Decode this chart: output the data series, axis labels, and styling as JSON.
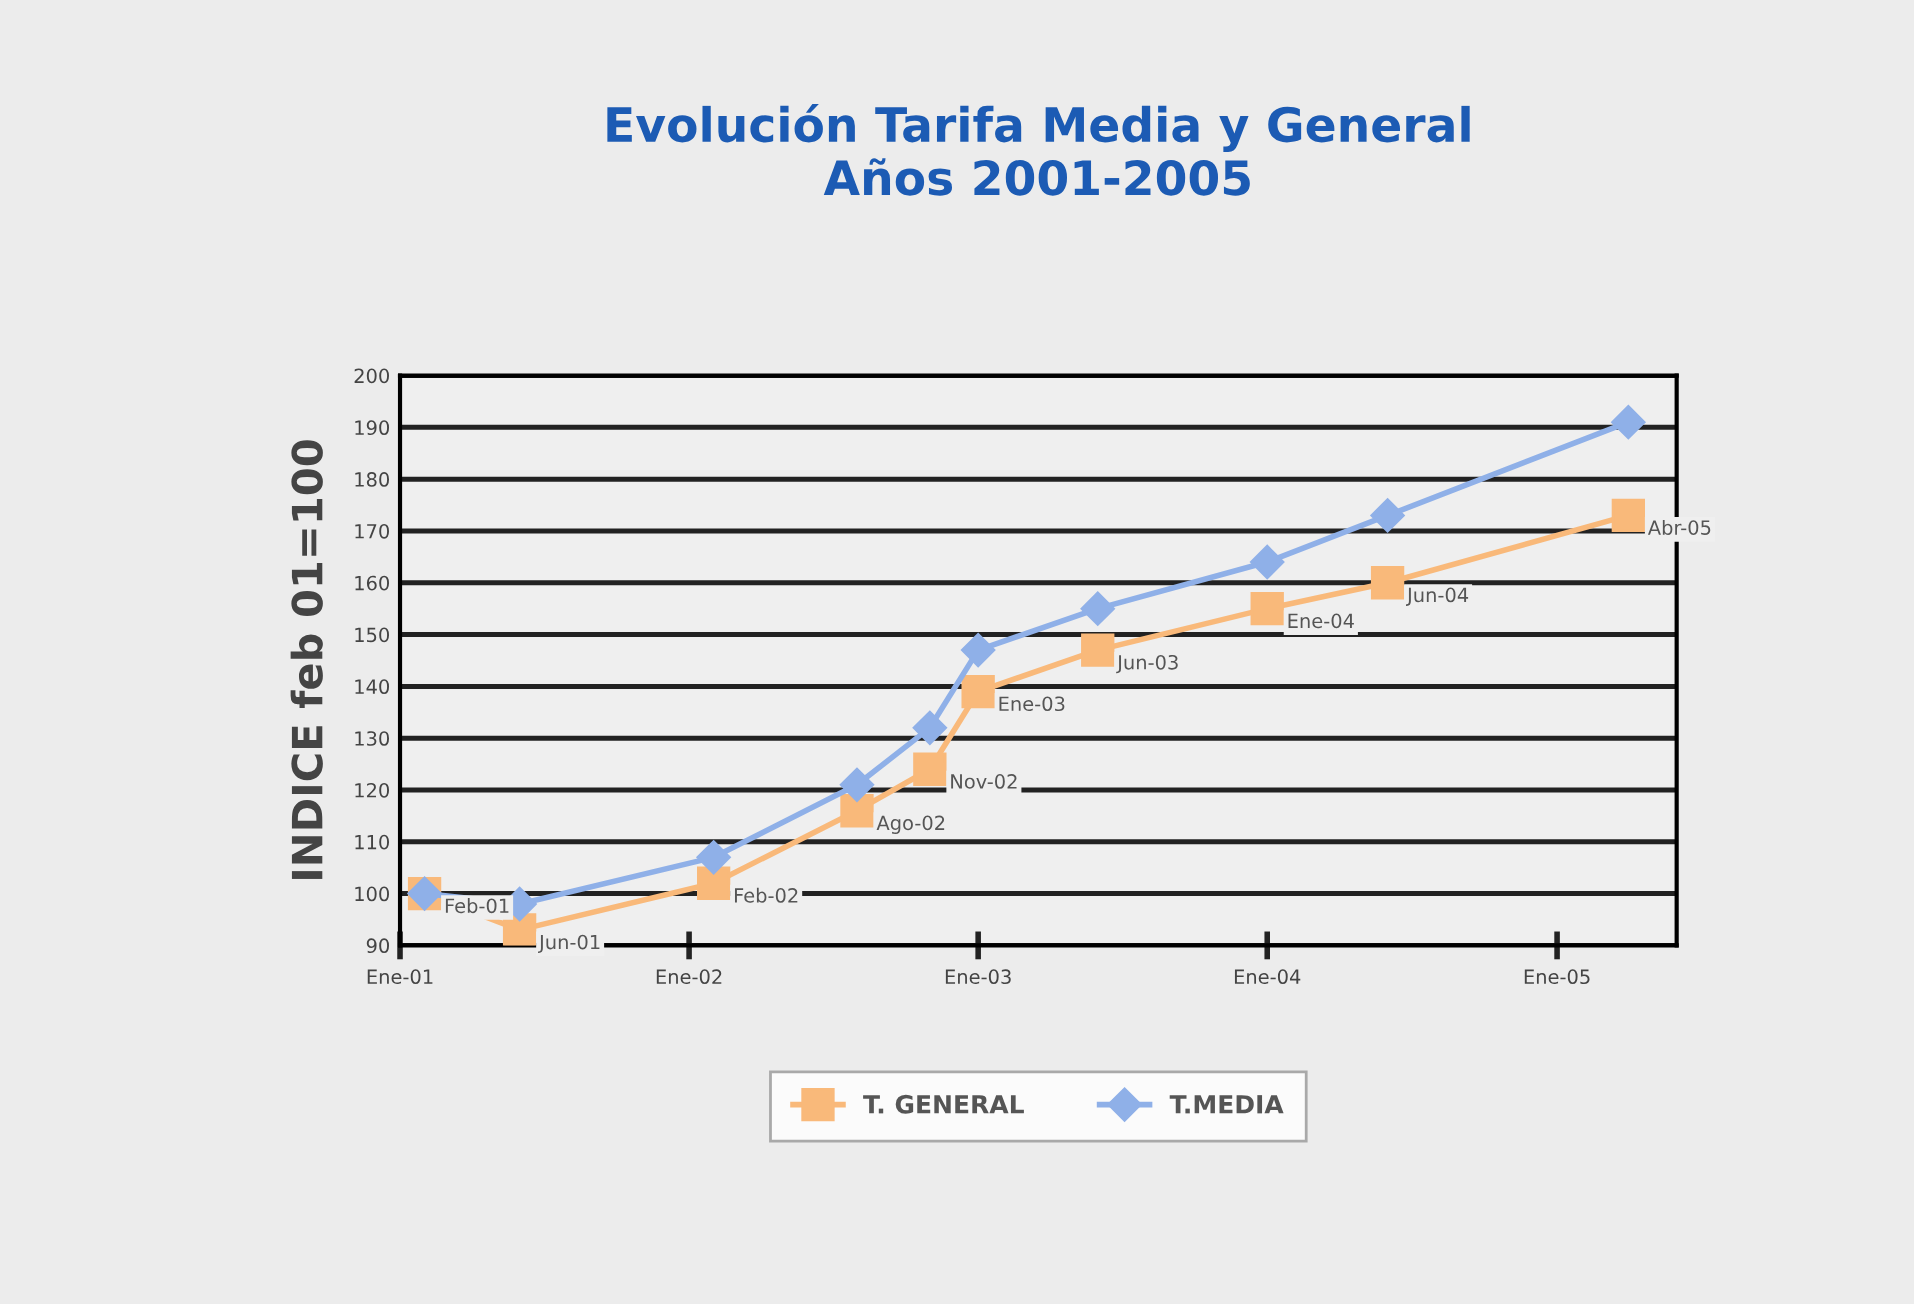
{
  "chart_data": {
    "type": "line",
    "title": "Evolución Tarifa Media y General\nAños 2001-2005",
    "ylabel": "INDICE feb 01=100",
    "x": [
      "2001-02",
      "2001-06",
      "2002-02",
      "2002-08",
      "2002-11",
      "2003-01",
      "2003-06",
      "2004-01",
      "2004-06",
      "2005-04"
    ],
    "series": [
      {
        "name": "T. GENERAL",
        "color": "#f9b97a",
        "marker": "square",
        "values": [
          100,
          93,
          102,
          116,
          124,
          139,
          147,
          155,
          160,
          173
        ]
      },
      {
        "name": "T.MEDIA",
        "color": "#8fb0e8",
        "marker": "diamond",
        "values": [
          100,
          98,
          107,
          121,
          132,
          147,
          155,
          164,
          173,
          191
        ]
      }
    ],
    "annotations": [
      {
        "text": "Feb-01",
        "x": "2001-02",
        "y": 100
      },
      {
        "text": "Jun-01",
        "x": "2001-06",
        "y": 93
      },
      {
        "text": "Feb-02",
        "x": "2002-02",
        "y": 102
      },
      {
        "text": "Ago-02",
        "x": "2002-08",
        "y": 116
      },
      {
        "text": "Nov-02",
        "x": "2002-11",
        "y": 124
      },
      {
        "text": "Ene-03",
        "x": "2003-01",
        "y": 139
      },
      {
        "text": "Jun-03",
        "x": "2003-06",
        "y": 147
      },
      {
        "text": "Ene-04",
        "x": "2004-01",
        "y": 155
      },
      {
        "text": "Jun-04",
        "x": "2004-06",
        "y": 160
      },
      {
        "text": "Abr-05",
        "x": "2005-04",
        "y": 173
      }
    ],
    "xlim": [
      "2001-01",
      "2005-06"
    ],
    "xticks": [
      {
        "value": "2001-01",
        "label": "Ene-01"
      },
      {
        "value": "2002-01",
        "label": "Ene-02"
      },
      {
        "value": "2003-01",
        "label": "Ene-03"
      },
      {
        "value": "2004-01",
        "label": "Ene-04"
      },
      {
        "value": "2005-01",
        "label": "Ene-05"
      }
    ],
    "ylim": [
      90,
      200
    ],
    "yticks": [
      90,
      100,
      110,
      120,
      130,
      140,
      150,
      160,
      170,
      180,
      190,
      200
    ],
    "grid": "y",
    "legend": "bottom",
    "line_style": "solid"
  }
}
